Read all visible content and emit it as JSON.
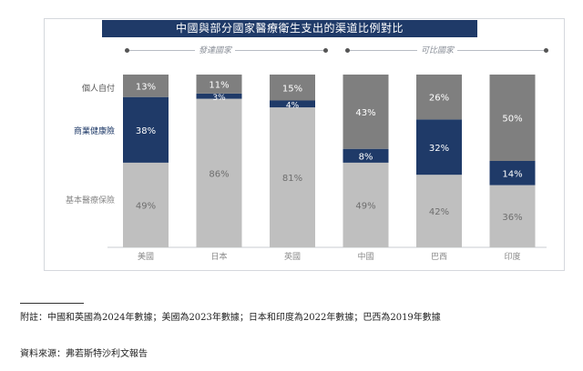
{
  "chart_data": {
    "type": "bar",
    "stacked": true,
    "normalized": true,
    "title": "中國與部分國家醫療衛生支出的渠道比例對比",
    "groups": [
      {
        "label": "發達國家",
        "categories": [
          "美國",
          "日本",
          "英國"
        ]
      },
      {
        "label": "可比國家",
        "categories": [
          "中國",
          "巴西",
          "印度"
        ]
      }
    ],
    "categories": [
      "美國",
      "日本",
      "英國",
      "中國",
      "巴西",
      "印度"
    ],
    "series": [
      {
        "name": "基本醫療保險",
        "values": [
          49,
          86,
          81,
          49,
          42,
          36
        ],
        "labels": [
          "49%",
          "86%",
          "81%",
          "49%",
          "42%",
          "36%"
        ],
        "color": "#bfbfbf",
        "label_color": "#6e6e6e"
      },
      {
        "name": "商業健康險",
        "values": [
          38,
          3,
          4,
          8,
          32,
          14
        ],
        "labels": [
          "38%",
          "3%",
          "4%",
          "8%",
          "32%",
          "14%"
        ],
        "color": "#1f3a68",
        "label_color": "#ffffff"
      },
      {
        "name": "個人自付",
        "values": [
          13,
          11,
          15,
          43,
          26,
          50
        ],
        "labels": [
          "13%",
          "11%",
          "15%",
          "43%",
          "26%",
          "50%"
        ],
        "color": "#7f7f7f",
        "label_color": "#ffffff"
      }
    ],
    "ylim": [
      0,
      100
    ],
    "legend": "left"
  },
  "footnote": {
    "note": "附註：中國和英國為2024年數據；美國為2023年數據；日本和印度為2022年數據；巴西為2019年數據",
    "source": "資料來源：弗若斯特沙利文報告"
  }
}
